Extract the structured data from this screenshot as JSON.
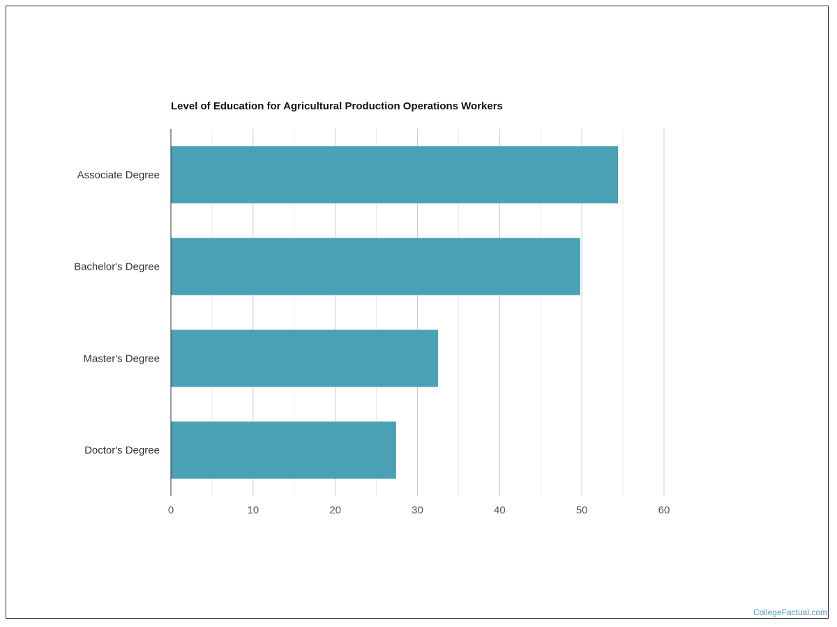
{
  "chart_data": {
    "type": "bar",
    "orientation": "horizontal",
    "title": "Level of Education for Agricultural Production Operations Workers",
    "categories": [
      "Associate Degree",
      "Bachelor's Degree",
      "Master's Degree",
      "Doctor's Degree"
    ],
    "values": [
      54.4,
      49.8,
      32.5,
      27.4
    ],
    "xlim": [
      0,
      60
    ],
    "xticks": [
      "0",
      "10",
      "20",
      "30",
      "40",
      "50",
      "60"
    ],
    "xlabel": "",
    "ylabel": "",
    "grid": true,
    "legend": "none",
    "bar_color": "#4aa0b4"
  },
  "watermark": "CollegeFactual.com"
}
